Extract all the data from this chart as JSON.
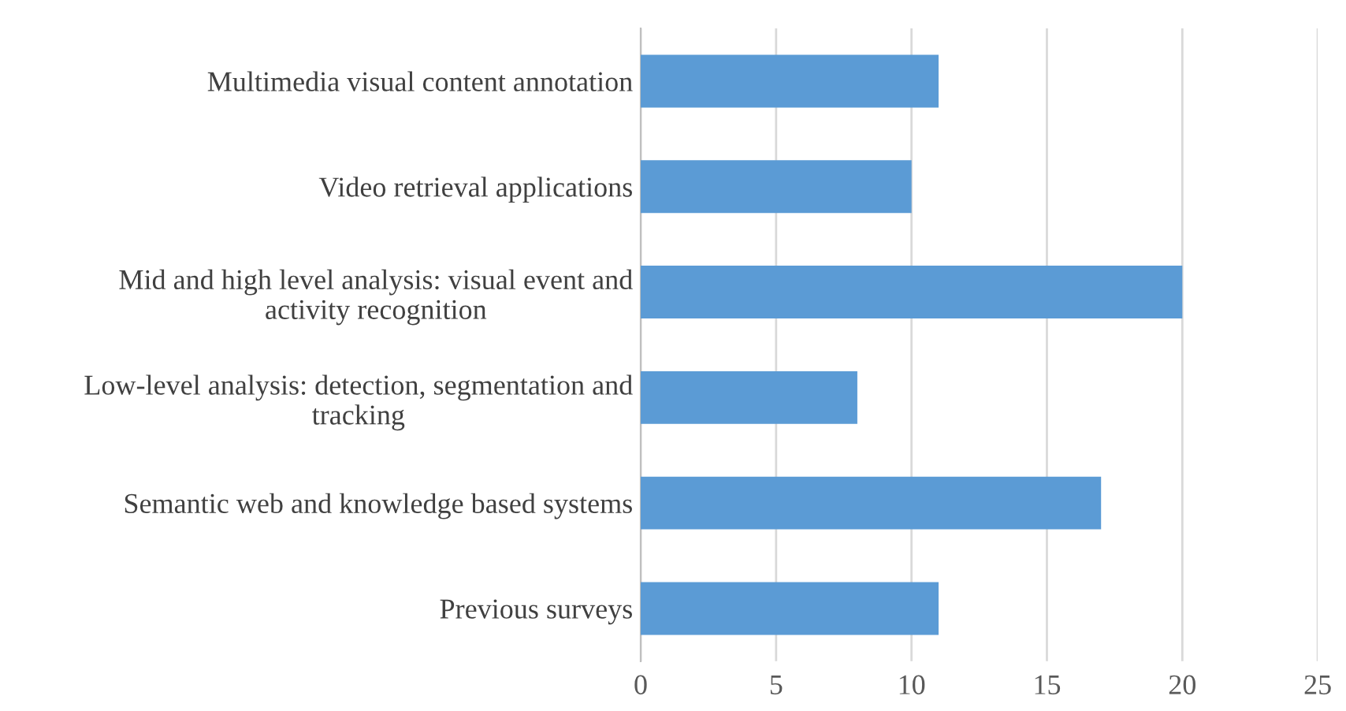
{
  "chart_data": {
    "type": "bar",
    "orientation": "horizontal",
    "categories": [
      "Multimedia visual content annotation",
      "Video retrieval applications",
      "Mid and high level analysis: visual event and\nactivity recognition",
      "Low-level analysis: detection, segmentation and\ntracking",
      "Semantic web and knowledge based systems",
      "Previous surveys"
    ],
    "values": [
      11,
      10,
      20,
      8,
      17,
      11
    ],
    "color": "#5b9bd5",
    "xlim": [
      0,
      25
    ],
    "xticks": [
      0,
      5,
      10,
      15,
      20,
      25
    ],
    "grid": "x",
    "legend": false
  }
}
